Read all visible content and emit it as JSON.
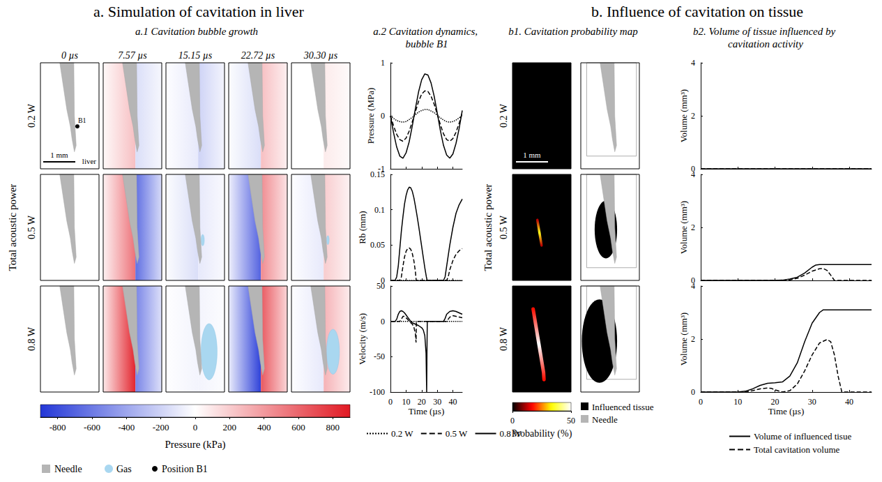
{
  "title_a": "a. Simulation of cavitation in liver",
  "title_b": "b. Influence of cavitation on tissue",
  "row_axis_label": "Total acoustic power",
  "powers": [
    "0.2 W",
    "0.5 W",
    "0.8 W"
  ],
  "a1": {
    "subtitle": "a.1 Cavitation bubble growth",
    "times": [
      "0 µs",
      "7.57 µs",
      "15.15 µs",
      "22.72 µs",
      "30.30 µs"
    ],
    "scale_bar": {
      "label": "1 mm",
      "value": 1
    },
    "tissue_label": "liver",
    "point_label": "B1",
    "fields": [
      [
        {
          "left": 0,
          "right": 0,
          "gas_mm": 0
        },
        {
          "left": 250,
          "right": -150,
          "gas_mm": 0
        },
        {
          "left": -100,
          "right": -200,
          "gas_mm": 0
        },
        {
          "left": -150,
          "right": 250,
          "gas_mm": 0
        },
        {
          "left": 0,
          "right": 80,
          "gas_mm": 0
        }
      ],
      [
        {
          "left": 0,
          "right": 0,
          "gas_mm": 0
        },
        {
          "left": 550,
          "right": -650,
          "gas_mm": 0
        },
        {
          "left": -150,
          "right": -100,
          "gas_mm": 0.05
        },
        {
          "left": -700,
          "right": 450,
          "gas_mm": 0
        },
        {
          "left": -100,
          "right": 200,
          "gas_mm": 0.04
        }
      ],
      [
        {
          "left": 0,
          "right": 0,
          "gas_mm": 0
        },
        {
          "left": 850,
          "right": -550,
          "gas_mm": 0
        },
        {
          "left": -50,
          "right": -50,
          "gas_mm": 0.25
        },
        {
          "left": -850,
          "right": 650,
          "gas_mm": 0
        },
        {
          "left": -100,
          "right": 300,
          "gas_mm": 0.2
        }
      ]
    ],
    "colorbar": {
      "label": "Pressure (kPa)",
      "clim": [
        -900,
        900
      ],
      "cticks": [
        -800,
        -600,
        -400,
        -200,
        0,
        200,
        400,
        600,
        800
      ]
    },
    "legend": {
      "needle": "Needle",
      "gas": "Gas",
      "point": "Position B1"
    }
  },
  "a2": {
    "subtitle": "a.2 Cavitation dynamics, bubble B1"
  },
  "b1": {
    "subtitle": "b1. Cavitation probability map",
    "scale_bar": {
      "label": "1 mm",
      "value": 1
    },
    "maps": [
      {
        "peak": 0,
        "length_mm": 0
      },
      {
        "peak": 35,
        "length_mm": 0.8
      },
      {
        "peak": 50,
        "length_mm": 2.2
      }
    ],
    "colorbar": {
      "label": "Probability (%)",
      "clim": [
        0,
        50
      ],
      "cticks": [
        0,
        50
      ]
    },
    "influenced": [
      {
        "width_mm": 0,
        "height_mm": 0
      },
      {
        "width_mm": 0.7,
        "height_mm": 1.8
      },
      {
        "width_mm": 1.1,
        "height_mm": 2.6
      }
    ],
    "legend": {
      "tissue": "Influenced tissue",
      "needle": "Needle"
    }
  },
  "b2": {
    "subtitle": "b2. Volume of tissue influenced by cavitation activity"
  },
  "chart_data": [
    {
      "type": "line",
      "ylabel": "Pressure (MPa)",
      "xlim": [
        0,
        46
      ],
      "xticks": [
        0,
        10,
        20,
        30,
        40
      ],
      "ylim": [
        -1,
        1
      ],
      "yticks": [
        -1,
        0,
        1
      ],
      "grid": false,
      "tick_labels": "y",
      "series": [
        {
          "name": "0.2 W",
          "color": "#000000",
          "line_style": "dotted",
          "x": [
            0,
            2,
            4,
            6,
            8,
            10,
            12,
            14,
            16,
            18,
            20,
            22,
            24,
            26,
            28,
            30,
            32,
            34,
            36,
            38,
            40,
            42,
            44,
            46
          ],
          "values": [
            0,
            -0.05,
            -0.09,
            -0.11,
            -0.12,
            -0.11,
            -0.07,
            -0.03,
            0.02,
            0.07,
            0.1,
            0.12,
            0.12,
            0.09,
            0.06,
            0.01,
            -0.04,
            -0.08,
            -0.11,
            -0.12,
            -0.11,
            -0.08,
            -0.04,
            0.01
          ]
        },
        {
          "name": "0.5 W",
          "color": "#000000",
          "line_style": "dashed",
          "x": [
            0,
            2,
            4,
            6,
            8,
            10,
            12,
            14,
            16,
            18,
            20,
            22,
            24,
            26,
            28,
            30,
            32,
            34,
            36,
            38,
            40,
            42,
            44,
            46
          ],
          "values": [
            0,
            -0.19,
            -0.35,
            -0.45,
            -0.48,
            -0.42,
            -0.29,
            -0.11,
            0.08,
            0.27,
            0.41,
            0.47,
            0.46,
            0.37,
            0.22,
            0.03,
            -0.17,
            -0.34,
            -0.45,
            -0.48,
            -0.43,
            -0.31,
            -0.14,
            0.06
          ]
        },
        {
          "name": "0.8 W",
          "color": "#000000",
          "line_style": "solid",
          "x": [
            0,
            2,
            4,
            6,
            8,
            10,
            12,
            14,
            16,
            18,
            20,
            22,
            24,
            26,
            28,
            30,
            32,
            34,
            36,
            38,
            40,
            42,
            44,
            46
          ],
          "values": [
            0,
            -0.32,
            -0.59,
            -0.76,
            -0.8,
            -0.7,
            -0.49,
            -0.19,
            0.14,
            0.45,
            0.68,
            0.79,
            0.77,
            0.62,
            0.37,
            0.05,
            -0.28,
            -0.56,
            -0.74,
            -0.8,
            -0.72,
            -0.52,
            -0.24,
            0.1
          ]
        }
      ]
    },
    {
      "type": "line",
      "ylabel": "Rb (mm)",
      "xlim": [
        0,
        46
      ],
      "xticks": [
        0,
        10,
        20,
        30,
        40
      ],
      "ylim": [
        0,
        0.15
      ],
      "yticks": [
        0,
        0.05,
        0.1,
        0.15
      ],
      "grid": false,
      "tick_labels": "y",
      "series": [
        {
          "name": "0.2 W",
          "color": "#000000",
          "line_style": "dotted",
          "x": [
            0,
            46
          ],
          "values": [
            0,
            0
          ]
        },
        {
          "name": "0.5 W",
          "color": "#000000",
          "line_style": "dashed",
          "x": [
            0,
            6,
            7,
            8,
            9,
            10,
            11,
            12,
            13,
            14,
            15,
            16,
            16.5,
            36,
            37,
            38,
            40,
            42,
            44,
            46
          ],
          "values": [
            0,
            0,
            0.005,
            0.02,
            0.033,
            0.041,
            0.045,
            0.046,
            0.044,
            0.038,
            0.028,
            0.012,
            0,
            0,
            0.005,
            0.015,
            0.028,
            0.037,
            0.042,
            0.045
          ]
        },
        {
          "name": "0.8 W",
          "color": "#000000",
          "line_style": "solid",
          "x": [
            0,
            3,
            4,
            5,
            6,
            7,
            8,
            9,
            10,
            11,
            12,
            13,
            14,
            15,
            16,
            17,
            18,
            19,
            20,
            21,
            22,
            23,
            23.5,
            34,
            35,
            36,
            38,
            40,
            42,
            44,
            46
          ],
          "values": [
            0,
            0,
            0.005,
            0.02,
            0.045,
            0.07,
            0.09,
            0.108,
            0.12,
            0.128,
            0.132,
            0.131,
            0.126,
            0.117,
            0.105,
            0.092,
            0.078,
            0.063,
            0.048,
            0.033,
            0.018,
            0.005,
            0,
            0,
            0.005,
            0.02,
            0.05,
            0.075,
            0.095,
            0.107,
            0.115
          ]
        }
      ]
    },
    {
      "type": "line",
      "ylabel": "Velocity (m/s)",
      "xlabel": "Time (µs)",
      "xlim": [
        0,
        46
      ],
      "xticks": [
        0,
        10,
        20,
        30,
        40
      ],
      "ylim": [
        -100,
        50
      ],
      "yticks": [
        -100,
        -50,
        0,
        50
      ],
      "grid": false,
      "legend": "bottom",
      "series": [
        {
          "name": "0.2 W",
          "color": "#000000",
          "line_style": "dotted",
          "x": [
            0,
            46
          ],
          "values": [
            0,
            0
          ]
        },
        {
          "name": "0.5 W",
          "color": "#000000",
          "line_style": "dashed",
          "x": [
            0,
            6,
            7,
            8,
            9,
            10,
            11,
            12,
            13,
            14,
            15,
            16,
            16.4,
            16.6,
            36,
            37,
            38,
            40,
            42,
            44,
            46
          ],
          "values": [
            0,
            0,
            3,
            7,
            7,
            5,
            3,
            0,
            -2,
            -4,
            -8,
            -18,
            -30,
            0,
            0,
            3,
            6,
            8,
            7,
            6,
            5
          ]
        },
        {
          "name": "0.8 W",
          "color": "#000000",
          "line_style": "solid",
          "x": [
            0,
            3,
            4,
            5,
            6,
            7,
            8,
            9,
            10,
            11,
            12,
            13,
            14,
            16,
            18,
            20,
            21,
            22,
            22.8,
            23.2,
            23.4,
            23.6,
            34,
            35,
            36,
            38,
            40,
            42,
            44,
            46
          ],
          "values": [
            0,
            0,
            3,
            10,
            14,
            15,
            14,
            12,
            9,
            6,
            3,
            0,
            -2,
            -4,
            -6,
            -9,
            -12,
            -20,
            -45,
            -100,
            -40,
            0,
            0,
            4,
            10,
            14,
            15,
            14,
            12,
            10
          ]
        }
      ]
    },
    {
      "type": "line",
      "ylabel": "Volume (mm³)",
      "xlim": [
        0,
        46
      ],
      "xticks": [
        0,
        10,
        20,
        30,
        40
      ],
      "ylim": [
        0,
        4
      ],
      "yticks": [
        0,
        2,
        4
      ],
      "grid": false,
      "tick_labels": "y",
      "series": [
        {
          "name": "Volume of influenced tisue",
          "color": "#000000",
          "line_style": "solid",
          "x": [
            0,
            46
          ],
          "values": [
            0,
            0
          ]
        },
        {
          "name": "Total cavitation volume",
          "color": "#000000",
          "line_style": "dashed",
          "x": [
            0,
            46
          ],
          "values": [
            0,
            0
          ]
        }
      ]
    },
    {
      "type": "line",
      "ylabel": "Volume (mm³)",
      "xlim": [
        0,
        46
      ],
      "xticks": [
        0,
        10,
        20,
        30,
        40
      ],
      "ylim": [
        0,
        4
      ],
      "yticks": [
        0,
        2,
        4
      ],
      "grid": false,
      "tick_labels": "y",
      "series": [
        {
          "name": "Volume of influenced tisue",
          "color": "#000000",
          "line_style": "solid",
          "x": [
            0,
            20,
            22,
            24,
            26,
            28,
            30,
            31,
            32,
            46
          ],
          "values": [
            0,
            0,
            0.01,
            0.05,
            0.12,
            0.28,
            0.5,
            0.58,
            0.6,
            0.6
          ]
        },
        {
          "name": "Total cavitation volume",
          "color": "#000000",
          "line_style": "dashed",
          "x": [
            0,
            22,
            24,
            26,
            28,
            30,
            32,
            33,
            34,
            35,
            36,
            46
          ],
          "values": [
            0,
            0,
            0.02,
            0.08,
            0.2,
            0.35,
            0.44,
            0.45,
            0.38,
            0.2,
            0,
            0
          ]
        }
      ]
    },
    {
      "type": "line",
      "ylabel": "Volume (mm³)",
      "xlabel": "Time (µs)",
      "xlim": [
        0,
        46
      ],
      "xticks": [
        0,
        10,
        20,
        30,
        40
      ],
      "ylim": [
        0,
        4
      ],
      "yticks": [
        0,
        2,
        4
      ],
      "grid": false,
      "legend": "bottom",
      "series": [
        {
          "name": "Volume of influenced tisue",
          "color": "#000000",
          "line_style": "solid",
          "x": [
            0,
            10,
            12,
            14,
            16,
            18,
            20,
            22,
            24,
            26,
            28,
            30,
            32,
            33,
            34,
            46
          ],
          "values": [
            0,
            0,
            0.03,
            0.12,
            0.25,
            0.33,
            0.35,
            0.38,
            0.6,
            1.1,
            1.9,
            2.6,
            3.0,
            3.1,
            3.1,
            3.1
          ]
        },
        {
          "name": "Total cavitation volume",
          "color": "#000000",
          "line_style": "dashed",
          "x": [
            0,
            12,
            14,
            16,
            18,
            19,
            20,
            22,
            24,
            26,
            28,
            30,
            32,
            34,
            35,
            36,
            37,
            38,
            46
          ],
          "values": [
            0,
            0,
            0.05,
            0.12,
            0.15,
            0.14,
            0.08,
            0,
            0.05,
            0.3,
            0.8,
            1.4,
            1.85,
            1.98,
            1.9,
            1.4,
            0.6,
            0,
            0
          ]
        }
      ]
    }
  ]
}
